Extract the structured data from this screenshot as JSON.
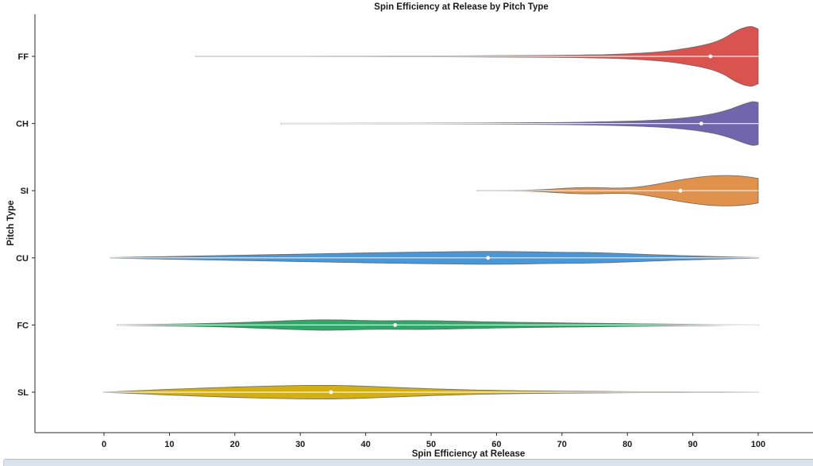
{
  "chart_data": {
    "type": "violin",
    "title": "Spin Efficiency at Release by Pitch Type",
    "xlabel": "Spin Efficiency at Release",
    "ylabel": "Pitch Type",
    "orientation": "horizontal",
    "xlim": [
      0,
      100
    ],
    "xticks": [
      0,
      10,
      20,
      30,
      40,
      50,
      60,
      70,
      80,
      90,
      100
    ],
    "grid": false,
    "categories": [
      "FF",
      "CH",
      "SI",
      "CU",
      "FC",
      "SL"
    ],
    "axis_color": "#2b2b2b",
    "edge_color": "#606060",
    "centerline_color": "rgba(255,255,255,0.85)",
    "median_dot_color": "#ffffff",
    "series": [
      {
        "name": "FF",
        "color": "#d9534f",
        "median": 92.7,
        "range_min": 14,
        "range_max": 100,
        "clipped_at_max": true,
        "profile": [
          [
            14,
            0.3
          ],
          [
            20,
            0.3
          ],
          [
            28,
            0.35
          ],
          [
            36,
            0.4
          ],
          [
            44,
            0.5
          ],
          [
            52,
            0.6
          ],
          [
            58,
            0.8
          ],
          [
            64,
            1.0
          ],
          [
            69,
            1.3
          ],
          [
            73,
            1.7
          ],
          [
            77,
            2.3
          ],
          [
            80,
            3.2
          ],
          [
            83,
            4.5
          ],
          [
            85.5,
            6.2
          ],
          [
            87.5,
            8.2
          ],
          [
            89.5,
            10.8
          ],
          [
            91,
            13
          ],
          [
            92.5,
            16
          ],
          [
            93.8,
            19.5
          ],
          [
            95,
            24
          ],
          [
            96,
            29
          ],
          [
            97,
            33.5
          ],
          [
            98,
            36.5
          ],
          [
            99,
            37.5
          ],
          [
            100,
            34.5
          ]
        ]
      },
      {
        "name": "CH",
        "color": "#7166ae",
        "median": 91.3,
        "range_min": 27,
        "range_max": 100,
        "clipped_at_max": true,
        "profile": [
          [
            27,
            0.3
          ],
          [
            34,
            0.3
          ],
          [
            42,
            0.4
          ],
          [
            50,
            0.5
          ],
          [
            57,
            0.7
          ],
          [
            63,
            0.9
          ],
          [
            68,
            1.2
          ],
          [
            73,
            1.7
          ],
          [
            77,
            2.3
          ],
          [
            81,
            3.2
          ],
          [
            84,
            4.2
          ],
          [
            87,
            5.8
          ],
          [
            89.5,
            7.8
          ],
          [
            91.5,
            10
          ],
          [
            93.5,
            13
          ],
          [
            95.5,
            17.5
          ],
          [
            97,
            22
          ],
          [
            98.2,
            25.5
          ],
          [
            99.2,
            27.5
          ],
          [
            100,
            26.5
          ]
        ]
      },
      {
        "name": "SI",
        "color": "#e0924d",
        "median": 88.1,
        "range_min": 57,
        "range_max": 100,
        "clipped_at_max": true,
        "profile": [
          [
            57,
            0.2
          ],
          [
            61,
            0.3
          ],
          [
            64,
            0.5
          ],
          [
            66,
            1.0
          ],
          [
            68,
            1.8
          ],
          [
            70,
            2.8
          ],
          [
            72,
            3.6
          ],
          [
            74,
            4.0
          ],
          [
            76,
            3.8
          ],
          [
            78,
            3.3
          ],
          [
            80,
            3.6
          ],
          [
            82,
            5
          ],
          [
            84,
            7.5
          ],
          [
            86,
            10.5
          ],
          [
            88,
            13.5
          ],
          [
            90,
            16
          ],
          [
            92,
            18
          ],
          [
            94,
            19
          ],
          [
            96,
            19
          ],
          [
            97.5,
            18.3
          ],
          [
            99,
            16.8
          ],
          [
            100,
            15.5
          ]
        ]
      },
      {
        "name": "CU",
        "color": "#4897d8",
        "median": 58.7,
        "range_min": 1,
        "range_max": 100,
        "clipped_at_max": false,
        "profile": [
          [
            1,
            0.3
          ],
          [
            4,
            0.8
          ],
          [
            8,
            1.4
          ],
          [
            12,
            2.0
          ],
          [
            16,
            2.6
          ],
          [
            20,
            3.2
          ],
          [
            24,
            3.8
          ],
          [
            28,
            4.4
          ],
          [
            32,
            5.0
          ],
          [
            36,
            5.6
          ],
          [
            40,
            6.2
          ],
          [
            44,
            6.7
          ],
          [
            48,
            7.2
          ],
          [
            52,
            7.6
          ],
          [
            55,
            7.9
          ],
          [
            58,
            8.1
          ],
          [
            61,
            8.0
          ],
          [
            64,
            7.7
          ],
          [
            67,
            7.3
          ],
          [
            70,
            7.0
          ],
          [
            73,
            6.8
          ],
          [
            76,
            6.3
          ],
          [
            79,
            5.5
          ],
          [
            82,
            4.6
          ],
          [
            85,
            3.7
          ],
          [
            88,
            2.9
          ],
          [
            91,
            2.2
          ],
          [
            94,
            1.5
          ],
          [
            97,
            0.9
          ],
          [
            100,
            0.4
          ]
        ]
      },
      {
        "name": "FC",
        "color": "#2ea866",
        "median": 44.5,
        "range_min": 2,
        "range_max": 100,
        "clipped_at_max": false,
        "profile": [
          [
            2,
            0.3
          ],
          [
            5,
            0.6
          ],
          [
            9,
            1.0
          ],
          [
            13,
            1.5
          ],
          [
            17,
            2.2
          ],
          [
            21,
            3.2
          ],
          [
            25,
            4.4
          ],
          [
            28,
            5.4
          ],
          [
            31,
            6.2
          ],
          [
            33.5,
            6.6
          ],
          [
            36,
            6.4
          ],
          [
            39,
            5.8
          ],
          [
            42,
            5.4
          ],
          [
            45,
            5.5
          ],
          [
            48,
            5.6
          ],
          [
            51,
            5.3
          ],
          [
            54,
            4.8
          ],
          [
            57,
            4.3
          ],
          [
            60,
            3.8
          ],
          [
            64,
            3.3
          ],
          [
            68,
            2.9
          ],
          [
            72,
            2.5
          ],
          [
            76,
            2.1
          ],
          [
            80,
            1.7
          ],
          [
            84,
            1.3
          ],
          [
            88,
            0.9
          ],
          [
            92,
            0.6
          ],
          [
            95,
            0.3
          ],
          [
            100,
            0.15
          ]
        ]
      },
      {
        "name": "SL",
        "color": "#d4af14",
        "median": 34.7,
        "range_min": 0,
        "range_max": 100,
        "clipped_at_max": false,
        "profile": [
          [
            0,
            0.3
          ],
          [
            2,
            0.8
          ],
          [
            5,
            1.8
          ],
          [
            8,
            2.9
          ],
          [
            11,
            3.9
          ],
          [
            14,
            4.8
          ],
          [
            17,
            5.7
          ],
          [
            20,
            6.5
          ],
          [
            23,
            7.2
          ],
          [
            26,
            7.8
          ],
          [
            29,
            8.3
          ],
          [
            32,
            8.6
          ],
          [
            35,
            8.5
          ],
          [
            38,
            8.0
          ],
          [
            41,
            7.2
          ],
          [
            44,
            6.2
          ],
          [
            47,
            5.2
          ],
          [
            50,
            4.3
          ],
          [
            53,
            3.5
          ],
          [
            56,
            2.9
          ],
          [
            59,
            2.4
          ],
          [
            62,
            2.0
          ],
          [
            65,
            1.7
          ],
          [
            68,
            1.4
          ],
          [
            71,
            1.2
          ],
          [
            74,
            1.0
          ],
          [
            78,
            0.8
          ],
          [
            82,
            0.65
          ],
          [
            86,
            0.55
          ],
          [
            90,
            0.45
          ],
          [
            94,
            0.35
          ],
          [
            100,
            0.2
          ]
        ]
      }
    ]
  }
}
